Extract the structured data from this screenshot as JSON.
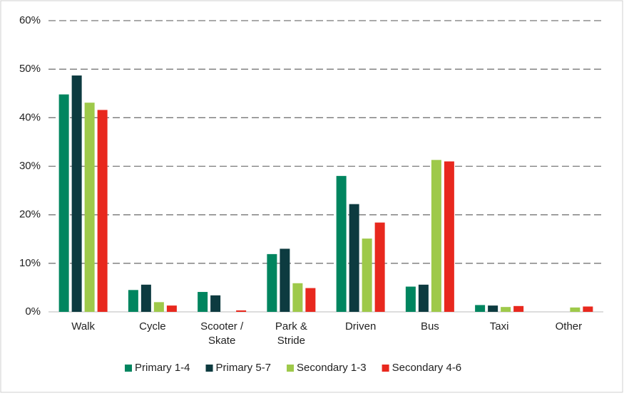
{
  "chart_data": {
    "type": "bar",
    "categories": [
      "Walk",
      "Cycle",
      "Scooter / Skate",
      "Park & Stride",
      "Driven",
      "Bus",
      "Taxi",
      "Other"
    ],
    "series": [
      {
        "name": "Primary 1-4",
        "color": "#00855f",
        "values": [
          44.8,
          4.5,
          4.1,
          11.9,
          28.0,
          5.2,
          1.4,
          0
        ]
      },
      {
        "name": "Primary 5-7",
        "color": "#0d3b40",
        "values": [
          48.7,
          5.6,
          3.4,
          13.0,
          22.2,
          5.6,
          1.3,
          0
        ]
      },
      {
        "name": "Secondary 1-3",
        "color": "#9ec94a",
        "values": [
          43.1,
          2.0,
          0,
          5.9,
          15.1,
          31.3,
          1.0,
          0.9
        ]
      },
      {
        "name": "Secondary 4-6",
        "color": "#e8281e",
        "values": [
          41.6,
          1.3,
          0.3,
          4.9,
          18.4,
          31.0,
          1.2,
          1.1
        ]
      }
    ],
    "ylim": [
      0,
      60
    ],
    "yticks": [
      {
        "value": 0,
        "label": "0%"
      },
      {
        "value": 10,
        "label": "10%"
      },
      {
        "value": 20,
        "label": "20%"
      },
      {
        "value": 30,
        "label": "30%"
      },
      {
        "value": 40,
        "label": "40%"
      },
      {
        "value": 50,
        "label": "50%"
      },
      {
        "value": 60,
        "label": "60%"
      }
    ],
    "grid": true,
    "legend": "bottom"
  }
}
